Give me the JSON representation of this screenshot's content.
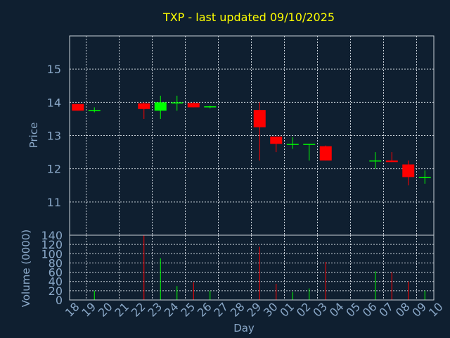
{
  "chart_data": [
    {
      "type": "candlestick",
      "title": "TXP - last updated 09/10/2025",
      "ylabel": "Price",
      "ylim": [
        10,
        16
      ],
      "yticks": [
        11,
        12,
        13,
        14,
        15
      ],
      "grid": true,
      "categories": [
        "18",
        "19",
        "20",
        "21",
        "22",
        "23",
        "24",
        "25",
        "26",
        "27",
        "28",
        "29",
        "30",
        "01",
        "02",
        "03",
        "04",
        "05",
        "06",
        "07",
        "08",
        "09",
        "10"
      ],
      "candles": [
        {
          "day": "18",
          "open": 13.95,
          "close": 13.75,
          "high": 13.95,
          "low": 13.75
        },
        {
          "day": "19",
          "open": 13.75,
          "close": 13.77,
          "high": 13.85,
          "low": 13.7
        },
        {
          "day": "22",
          "open": 13.97,
          "close": 13.8,
          "high": 14.0,
          "low": 13.5
        },
        {
          "day": "23",
          "open": 13.75,
          "close": 14.0,
          "high": 14.2,
          "low": 13.5
        },
        {
          "day": "24",
          "open": 13.98,
          "close": 14.0,
          "high": 14.2,
          "low": 13.75
        },
        {
          "day": "25",
          "open": 13.98,
          "close": 13.85,
          "high": 14.0,
          "low": 13.85
        },
        {
          "day": "26",
          "open": 13.85,
          "close": 13.88,
          "high": 13.9,
          "low": 13.82
        },
        {
          "day": "29",
          "open": 13.77,
          "close": 13.25,
          "high": 14.0,
          "low": 12.25
        },
        {
          "day": "30",
          "open": 12.97,
          "close": 12.75,
          "high": 12.97,
          "low": 12.5
        },
        {
          "day": "01",
          "open": 12.73,
          "close": 12.75,
          "high": 12.95,
          "low": 12.6
        },
        {
          "day": "02",
          "open": 12.73,
          "close": 12.75,
          "high": 12.75,
          "low": 12.25
        },
        {
          "day": "03",
          "open": 12.68,
          "close": 12.25,
          "high": 12.7,
          "low": 12.25
        },
        {
          "day": "06",
          "open": 12.23,
          "close": 12.25,
          "high": 12.5,
          "low": 12.0
        },
        {
          "day": "07",
          "open": 12.25,
          "close": 12.2,
          "high": 12.5,
          "low": 12.2
        },
        {
          "day": "08",
          "open": 12.13,
          "close": 11.75,
          "high": 12.25,
          "low": 11.5
        },
        {
          "day": "09",
          "open": 11.73,
          "close": 11.75,
          "high": 11.95,
          "low": 11.55
        }
      ],
      "colors": {
        "up": "#00ff00",
        "down": "#ff0000"
      }
    },
    {
      "type": "bar",
      "ylabel": "Volume (0000)",
      "xlabel": "Day",
      "ylim": [
        0,
        140
      ],
      "yticks": [
        0,
        20,
        40,
        60,
        80,
        100,
        120,
        140
      ],
      "grid": true,
      "bars": [
        {
          "day": "19",
          "value": 20,
          "color": "#00ff00"
        },
        {
          "day": "22",
          "value": 140,
          "color": "#ff0000"
        },
        {
          "day": "23",
          "value": 90,
          "color": "#00ff00"
        },
        {
          "day": "24",
          "value": 30,
          "color": "#00ff00"
        },
        {
          "day": "25",
          "value": 38,
          "color": "#ff0000"
        },
        {
          "day": "26",
          "value": 20,
          "color": "#00ff00"
        },
        {
          "day": "29",
          "value": 115,
          "color": "#ff0000"
        },
        {
          "day": "30",
          "value": 35,
          "color": "#ff0000"
        },
        {
          "day": "01",
          "value": 17,
          "color": "#00ff00"
        },
        {
          "day": "02",
          "value": 25,
          "color": "#00ff00"
        },
        {
          "day": "03",
          "value": 82,
          "color": "#ff0000"
        },
        {
          "day": "06",
          "value": 62,
          "color": "#00ff00"
        },
        {
          "day": "07",
          "value": 60,
          "color": "#ff0000"
        },
        {
          "day": "08",
          "value": 40,
          "color": "#ff0000"
        },
        {
          "day": "09",
          "value": 20,
          "color": "#00ff00"
        }
      ]
    }
  ]
}
